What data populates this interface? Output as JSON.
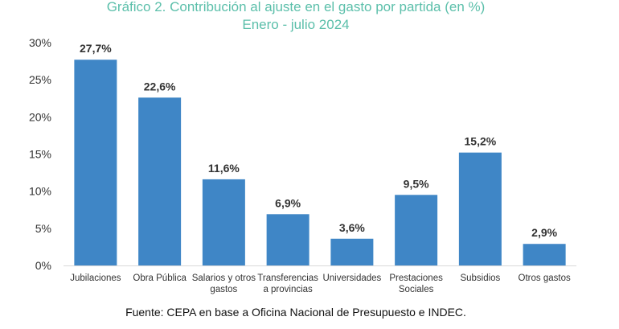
{
  "chart_data": {
    "type": "bar",
    "title": "Gráfico 2. Contribución al ajuste en el gasto por partida (en %)",
    "subtitle": "Enero - julio 2024",
    "categories": [
      [
        "Jubilaciones"
      ],
      [
        "Obra Pública"
      ],
      [
        "Salarios y otros",
        "gastos"
      ],
      [
        "Transferencias",
        "a provincias"
      ],
      [
        "Universidades"
      ],
      [
        "Prestaciones",
        "Sociales"
      ],
      [
        "Subsidios"
      ],
      [
        "Otros gastos"
      ]
    ],
    "values": [
      27.7,
      22.6,
      11.6,
      6.9,
      3.6,
      9.5,
      15.2,
      2.9
    ],
    "data_labels": [
      "27,7%",
      "22,6%",
      "11,6%",
      "6,9%",
      "3,6%",
      "9,5%",
      "15,2%",
      "2,9%"
    ],
    "y_ticks": [
      0,
      5,
      10,
      15,
      20,
      25,
      30
    ],
    "y_tick_labels": [
      "0%",
      "5%",
      "10%",
      "15%",
      "20%",
      "25%",
      "30%"
    ],
    "ylim": [
      0,
      30
    ],
    "grid": false,
    "xlabel": "",
    "ylabel": "",
    "bar_color": "#3f86c6",
    "title_color": "#5bbfaa"
  },
  "source": "Fuente: CEPA en base a Oficina Nacional de Presupuesto e INDEC."
}
